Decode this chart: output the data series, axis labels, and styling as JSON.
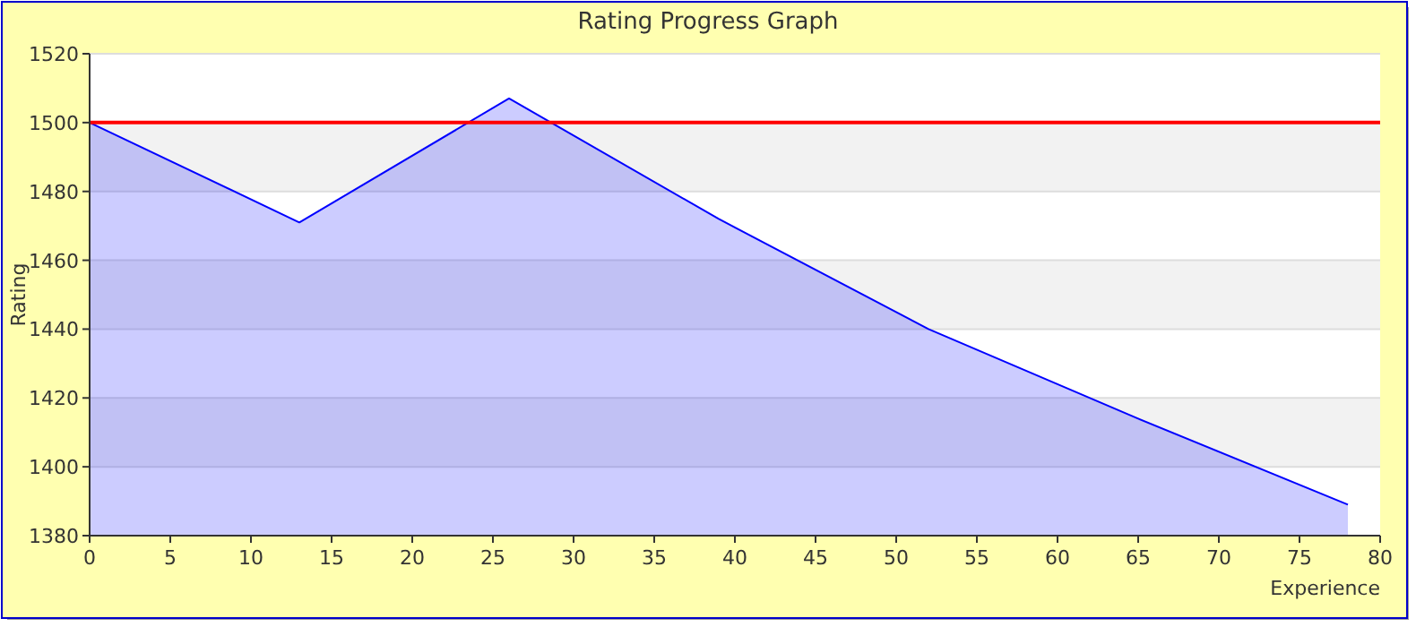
{
  "chart_data": {
    "type": "area",
    "title": "Rating Progress Graph",
    "xlabel": "Experience",
    "ylabel": "Rating",
    "x": [
      0,
      13,
      26,
      39,
      52,
      65,
      78
    ],
    "series": [
      {
        "color": "#0000ff",
        "values": [
          1500,
          1471,
          1507,
          1472,
          1440,
          1414,
          1389
        ]
      }
    ],
    "xlim": [
      0,
      80
    ],
    "xticks": [
      0,
      5,
      10,
      15,
      20,
      25,
      30,
      35,
      40,
      45,
      50,
      55,
      60,
      65,
      70,
      75,
      80
    ],
    "ylim": [
      1380,
      1520
    ],
    "yticks": [
      1380,
      1400,
      1420,
      1440,
      1460,
      1480,
      1500,
      1520
    ],
    "grid": "y",
    "ref_lines": [
      {
        "axis": "y",
        "value": 1500,
        "color": "#ff0000"
      }
    ]
  }
}
